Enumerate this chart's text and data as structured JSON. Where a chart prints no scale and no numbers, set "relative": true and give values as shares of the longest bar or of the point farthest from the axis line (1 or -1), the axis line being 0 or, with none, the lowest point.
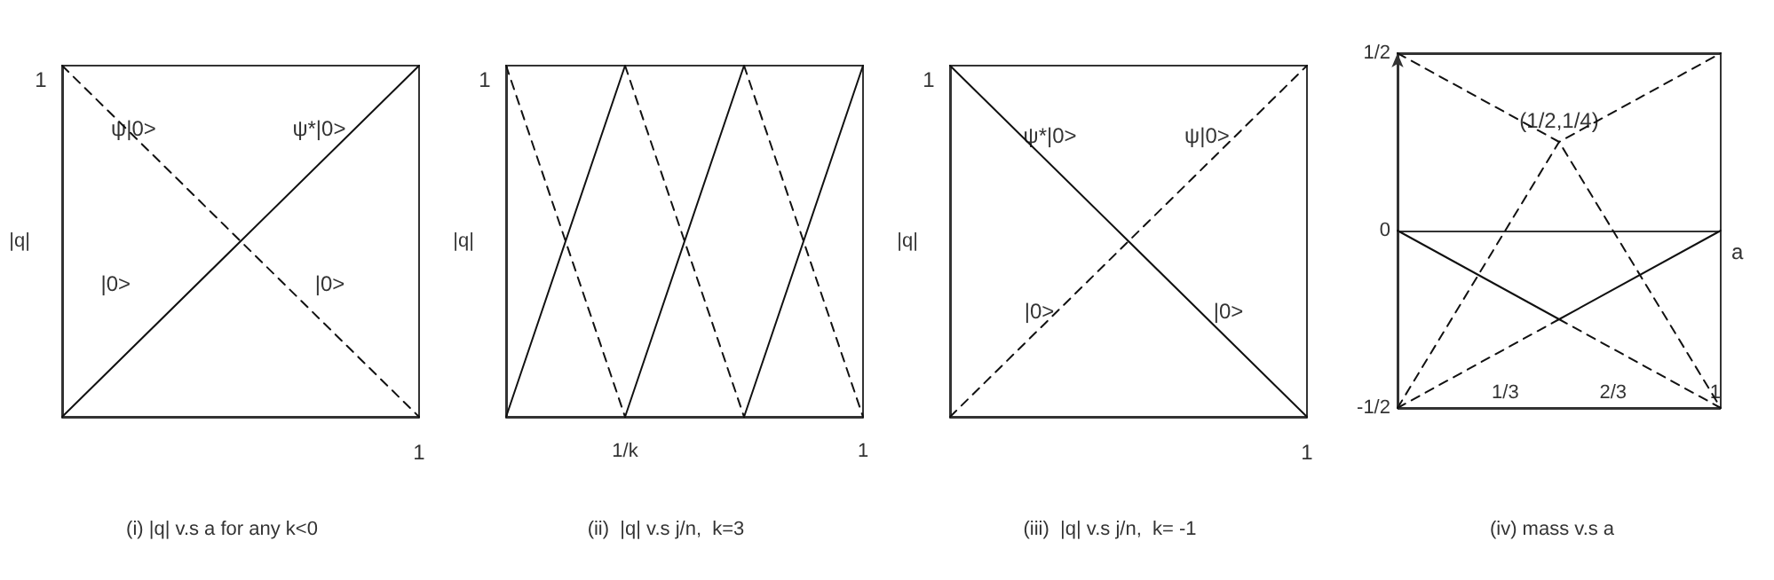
{
  "chart_data": [
    {
      "type": "line",
      "title": "(i) |q| v.s a for any k<0",
      "ylabel": "|q|",
      "relative": true,
      "categories": [
        null,
        null
      ],
      "marker": "none",
      "series": [
        {
          "color": "#111111",
          "line_style": "solid",
          "values": [
            0,
            1
          ]
        },
        {
          "color": "#111111",
          "line_style": "dashed",
          "values": [
            1,
            0
          ]
        }
      ],
      "annotations": [
        "1",
        "1",
        "ψ|0>",
        "ψ*|0>",
        "|0>",
        "|0>"
      ]
    },
    {
      "type": "line",
      "title": "(ii)  |q| v.s j/n,  k=3",
      "ylabel": "|q|",
      "relative": true,
      "categories": [
        null,
        "1/k",
        null,
        "1"
      ],
      "marker": "none",
      "series": [
        {
          "color": "#111111",
          "line_style": "solid",
          "values": [
            0,
            1,
            null,
            null
          ]
        },
        {
          "color": "#111111",
          "line_style": "solid",
          "values": [
            null,
            0,
            1,
            null
          ]
        },
        {
          "color": "#111111",
          "line_style": "solid",
          "values": [
            null,
            null,
            0,
            1
          ]
        },
        {
          "color": "#111111",
          "line_style": "dashed",
          "values": [
            1,
            0,
            null,
            null
          ]
        },
        {
          "color": "#111111",
          "line_style": "dashed",
          "values": [
            null,
            1,
            0,
            null
          ]
        },
        {
          "color": "#111111",
          "line_style": "dashed",
          "values": [
            null,
            null,
            1,
            0
          ]
        }
      ],
      "annotations": [
        "1"
      ]
    },
    {
      "type": "line",
      "title": "(iii)  |q| v.s j/n,  k= -1",
      "ylabel": "|q|",
      "relative": true,
      "categories": [
        null,
        null
      ],
      "marker": "none",
      "series": [
        {
          "color": "#111111",
          "line_style": "solid",
          "values": [
            1,
            0
          ]
        },
        {
          "color": "#111111",
          "line_style": "dashed",
          "values": [
            0,
            1
          ]
        }
      ],
      "annotations": [
        "1",
        "1",
        "ψ*|0>",
        "ψ|0>",
        "|0>",
        "|0>"
      ]
    },
    {
      "type": "line",
      "title": "(iv) mass v.s a",
      "xlabel": "a",
      "xlim": [
        0,
        1
      ],
      "ylim": [
        -0.5,
        0.5
      ],
      "xticks": [
        {
          "value": 0.3333,
          "label": "1/3"
        },
        {
          "value": 0.6667,
          "label": "2/3"
        },
        1
      ],
      "yticks": [
        {
          "value": -0.5,
          "label": "-1/2"
        },
        0,
        {
          "value": 0.5,
          "label": "1/2"
        }
      ],
      "grid": "y",
      "marker": "none",
      "series": [
        {
          "color": "#111111",
          "line_style": "solid",
          "x": [
            0,
            0.5,
            1
          ],
          "values": [
            0,
            -0.25,
            0
          ]
        },
        {
          "color": "#111111",
          "line_style": "dashed",
          "x": [
            0,
            0.5
          ],
          "values": [
            -0.5,
            -0.25
          ]
        },
        {
          "color": "#111111",
          "line_style": "dashed",
          "x": [
            0.5,
            1
          ],
          "values": [
            -0.25,
            -0.5
          ]
        },
        {
          "color": "#111111",
          "line_style": "dashed",
          "x": [
            0,
            0.5,
            1
          ],
          "values": [
            0.5,
            0.25,
            -0.5
          ]
        },
        {
          "color": "#111111",
          "line_style": "dashed",
          "x": [
            0,
            0.5,
            1
          ],
          "values": [
            -0.5,
            0.25,
            0.5
          ]
        }
      ],
      "annotations": [
        {
          "text": "(1/2,1/4)",
          "x": 0.5,
          "y": 0.25
        }
      ]
    }
  ]
}
